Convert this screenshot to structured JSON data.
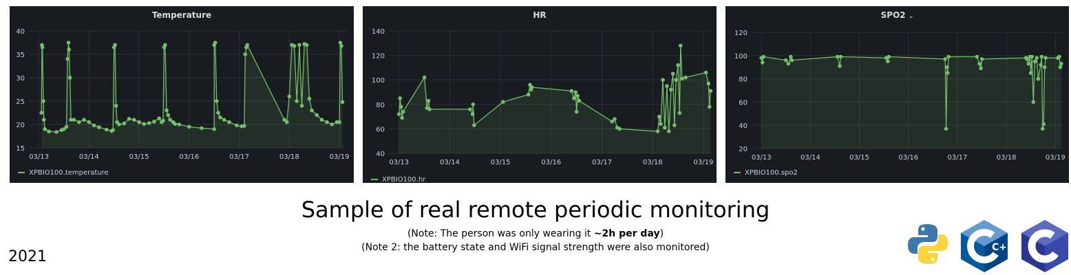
{
  "panels": [
    {
      "title": "Temperature",
      "legend": "XPBIO100.temperature",
      "chart_data": {
        "type": "line",
        "title": "Temperature",
        "series": [
          {
            "name": "XPBIO100.temperature",
            "color": "#73bf69",
            "points": [
              [
                13.05,
                22.5
              ],
              [
                13.06,
                37.0
              ],
              [
                13.07,
                36.5
              ],
              [
                13.09,
                25
              ],
              [
                13.1,
                21
              ],
              [
                13.12,
                19
              ],
              [
                13.2,
                18.5
              ],
              [
                13.35,
                18.4
              ],
              [
                13.45,
                18.8
              ],
              [
                13.5,
                19
              ],
              [
                13.55,
                19.5
              ],
              [
                13.57,
                34
              ],
              [
                13.59,
                37.5
              ],
              [
                13.6,
                36
              ],
              [
                13.62,
                30
              ],
              [
                13.64,
                21
              ],
              [
                13.7,
                21
              ],
              [
                13.8,
                20.5
              ],
              [
                13.9,
                21
              ],
              [
                14.0,
                20.5
              ],
              [
                14.1,
                19.8
              ],
              [
                14.2,
                19.4
              ],
              [
                14.35,
                18.9
              ],
              [
                14.45,
                18.6
              ],
              [
                14.48,
                18.8
              ],
              [
                14.5,
                36.5
              ],
              [
                14.52,
                37.0
              ],
              [
                14.54,
                24
              ],
              [
                14.56,
                20.5
              ],
              [
                14.6,
                20
              ],
              [
                14.7,
                20.2
              ],
              [
                14.8,
                21.2
              ],
              [
                14.9,
                21.0
              ],
              [
                15.0,
                20.5
              ],
              [
                15.1,
                20.1
              ],
              [
                15.2,
                20.3
              ],
              [
                15.3,
                20.6
              ],
              [
                15.4,
                21.3
              ],
              [
                15.45,
                20.5
              ],
              [
                15.48,
                20.8
              ],
              [
                15.5,
                36.5
              ],
              [
                15.52,
                37.0
              ],
              [
                15.55,
                23
              ],
              [
                15.58,
                22
              ],
              [
                15.62,
                21
              ],
              [
                15.68,
                20.5
              ],
              [
                15.72,
                20.1
              ],
              [
                15.8,
                20.0
              ],
              [
                16.0,
                19.5
              ],
              [
                16.25,
                19.2
              ],
              [
                16.5,
                19.0
              ],
              [
                16.5,
                37.0
              ],
              [
                16.52,
                37.5
              ],
              [
                16.55,
                25
              ],
              [
                16.58,
                22.5
              ],
              [
                16.62,
                21.5
              ],
              [
                16.7,
                21.0
              ],
              [
                16.8,
                20.5
              ],
              [
                16.95,
                19.8
              ],
              [
                17.05,
                19.6
              ],
              [
                17.1,
                19.7
              ],
              [
                17.12,
                35
              ],
              [
                17.14,
                36.5
              ],
              [
                17.16,
                37.0
              ],
              [
                17.9,
                21
              ],
              [
                17.95,
                20.5
              ],
              [
                18.0,
                26
              ],
              [
                18.05,
                37
              ],
              [
                18.1,
                36.8
              ],
              [
                18.15,
                25
              ],
              [
                18.2,
                37
              ],
              [
                18.25,
                24
              ],
              [
                18.3,
                37.2
              ],
              [
                18.35,
                37
              ],
              [
                18.4,
                25.5
              ],
              [
                18.45,
                23
              ],
              [
                18.55,
                22
              ],
              [
                18.65,
                21
              ],
              [
                18.75,
                20.5
              ],
              [
                18.85,
                20
              ],
              [
                18.95,
                20.5
              ],
              [
                19.0,
                20.5
              ],
              [
                19.02,
                37.5
              ],
              [
                19.04,
                36.8
              ],
              [
                19.06,
                24.8
              ]
            ]
          }
        ],
        "xticks": [
          "03/13",
          "03/14",
          "03/15",
          "03/16",
          "03/17",
          "03/18",
          "03/19"
        ],
        "xlim": [
          12.8,
          19.15
        ],
        "ylim": [
          15,
          40
        ],
        "yticks": [
          15,
          20,
          25,
          30,
          35,
          40
        ],
        "grid": true,
        "legend_position": "bottom-left"
      }
    },
    {
      "title": "HR",
      "legend": "XPBIO100.hr",
      "chart_data": {
        "type": "line",
        "title": "HR",
        "series": [
          {
            "name": "XPBIO100.hr",
            "color": "#73bf69",
            "points": [
              [
                13.0,
                72
              ],
              [
                13.02,
                85
              ],
              [
                13.04,
                78
              ],
              [
                13.06,
                69
              ],
              [
                13.08,
                74
              ],
              [
                13.5,
                102
              ],
              [
                13.55,
                77
              ],
              [
                13.58,
                83
              ],
              [
                13.6,
                76
              ],
              [
                14.4,
                76
              ],
              [
                14.45,
                72
              ],
              [
                14.46,
                80
              ],
              [
                14.48,
                63
              ],
              [
                15.05,
                82
              ],
              [
                15.55,
                88
              ],
              [
                15.58,
                96
              ],
              [
                15.6,
                92
              ],
              [
                15.62,
                94
              ],
              [
                16.4,
                91
              ],
              [
                16.45,
                85
              ],
              [
                16.48,
                90
              ],
              [
                16.5,
                74
              ],
              [
                16.52,
                87
              ],
              [
                16.55,
                83
              ],
              [
                17.2,
                66
              ],
              [
                17.25,
                68
              ],
              [
                17.3,
                61
              ],
              [
                17.35,
                60
              ],
              [
                18.1,
                58
              ],
              [
                18.13,
                70
              ],
              [
                18.16,
                64
              ],
              [
                18.2,
                100
              ],
              [
                18.24,
                61
              ],
              [
                18.28,
                95
              ],
              [
                18.32,
                58
              ],
              [
                18.36,
                92
              ],
              [
                18.4,
                105
              ],
              [
                18.43,
                63
              ],
              [
                18.46,
                100
              ],
              [
                18.5,
                112
              ],
              [
                18.53,
                73
              ],
              [
                18.55,
                128
              ],
              [
                18.58,
                101
              ],
              [
                18.65,
                102
              ],
              [
                19.05,
                106
              ],
              [
                19.1,
                97
              ],
              [
                19.12,
                78
              ],
              [
                19.14,
                91
              ]
            ]
          }
        ],
        "xticks": [
          "03/13",
          "03/14",
          "03/15",
          "03/16",
          "03/17",
          "03/18",
          "03/19"
        ],
        "xlim": [
          12.8,
          19.15
        ],
        "ylim": [
          40,
          140
        ],
        "yticks": [
          40,
          60,
          80,
          100,
          120,
          140
        ],
        "grid": true,
        "legend_position": "bottom-left"
      }
    },
    {
      "title": "SPO2",
      "legend": "XPBIO100.spo2",
      "chart_data": {
        "type": "line",
        "title": "SPO2",
        "series": [
          {
            "name": "XPBIO100.spo2",
            "color": "#73bf69",
            "points": [
              [
                13.0,
                98
              ],
              [
                13.02,
                94
              ],
              [
                13.04,
                99
              ],
              [
                13.5,
                96
              ],
              [
                13.55,
                93
              ],
              [
                13.6,
                99
              ],
              [
                13.62,
                96
              ],
              [
                14.55,
                99
              ],
              [
                14.6,
                91
              ],
              [
                14.62,
                99
              ],
              [
                15.55,
                98
              ],
              [
                15.58,
                95
              ],
              [
                15.6,
                99
              ],
              [
                16.75,
                97
              ],
              [
                16.77,
                37
              ],
              [
                16.79,
                90
              ],
              [
                16.8,
                85
              ],
              [
                16.82,
                99
              ],
              [
                17.4,
                99
              ],
              [
                17.45,
                93
              ],
              [
                17.48,
                89
              ],
              [
                17.5,
                97
              ],
              [
                18.4,
                98
              ],
              [
                18.42,
                97
              ],
              [
                18.45,
                93
              ],
              [
                18.48,
                99
              ],
              [
                18.5,
                85
              ],
              [
                18.52,
                99
              ],
              [
                18.55,
                60
              ],
              [
                18.58,
                95
              ],
              [
                18.62,
                98
              ],
              [
                18.65,
                80
              ],
              [
                18.7,
                92
              ],
              [
                18.72,
                99
              ],
              [
                18.74,
                37
              ],
              [
                18.76,
                41
              ],
              [
                18.78,
                90
              ],
              [
                18.8,
                98
              ],
              [
                19.05,
                98
              ],
              [
                19.08,
                99
              ],
              [
                19.1,
                90
              ],
              [
                19.12,
                93
              ]
            ]
          }
        ],
        "xticks": [
          "03/13",
          "03/14",
          "03/15",
          "03/16",
          "03/17",
          "03/18",
          "03/19"
        ],
        "xlim": [
          12.8,
          19.15
        ],
        "ylim": [
          20,
          120
        ],
        "yticks": [
          20,
          40,
          60,
          80,
          100,
          120
        ],
        "grid": true,
        "legend_position": "bottom-left"
      }
    }
  ],
  "caption": {
    "title": "Sample of real remote periodic monitoring",
    "note1_prefix": "(Note: The person was only wearing it  ",
    "note1_bold": "~2h per day",
    "note1_suffix": ")",
    "note2": "(Note 2: the battery state and WiFi signal strength were also monitored)"
  },
  "year": "2021",
  "logos": [
    {
      "name": "python-logo",
      "colors": [
        "#3c78aa",
        "#ffd43b"
      ]
    },
    {
      "name": "cpp-logo",
      "text": "C++",
      "colors": [
        "#00599c",
        "#659ad2",
        "#004482"
      ]
    },
    {
      "name": "c-logo",
      "text": "C",
      "colors": [
        "#283593",
        "#5c6bc0",
        "#3949ab"
      ]
    }
  ]
}
